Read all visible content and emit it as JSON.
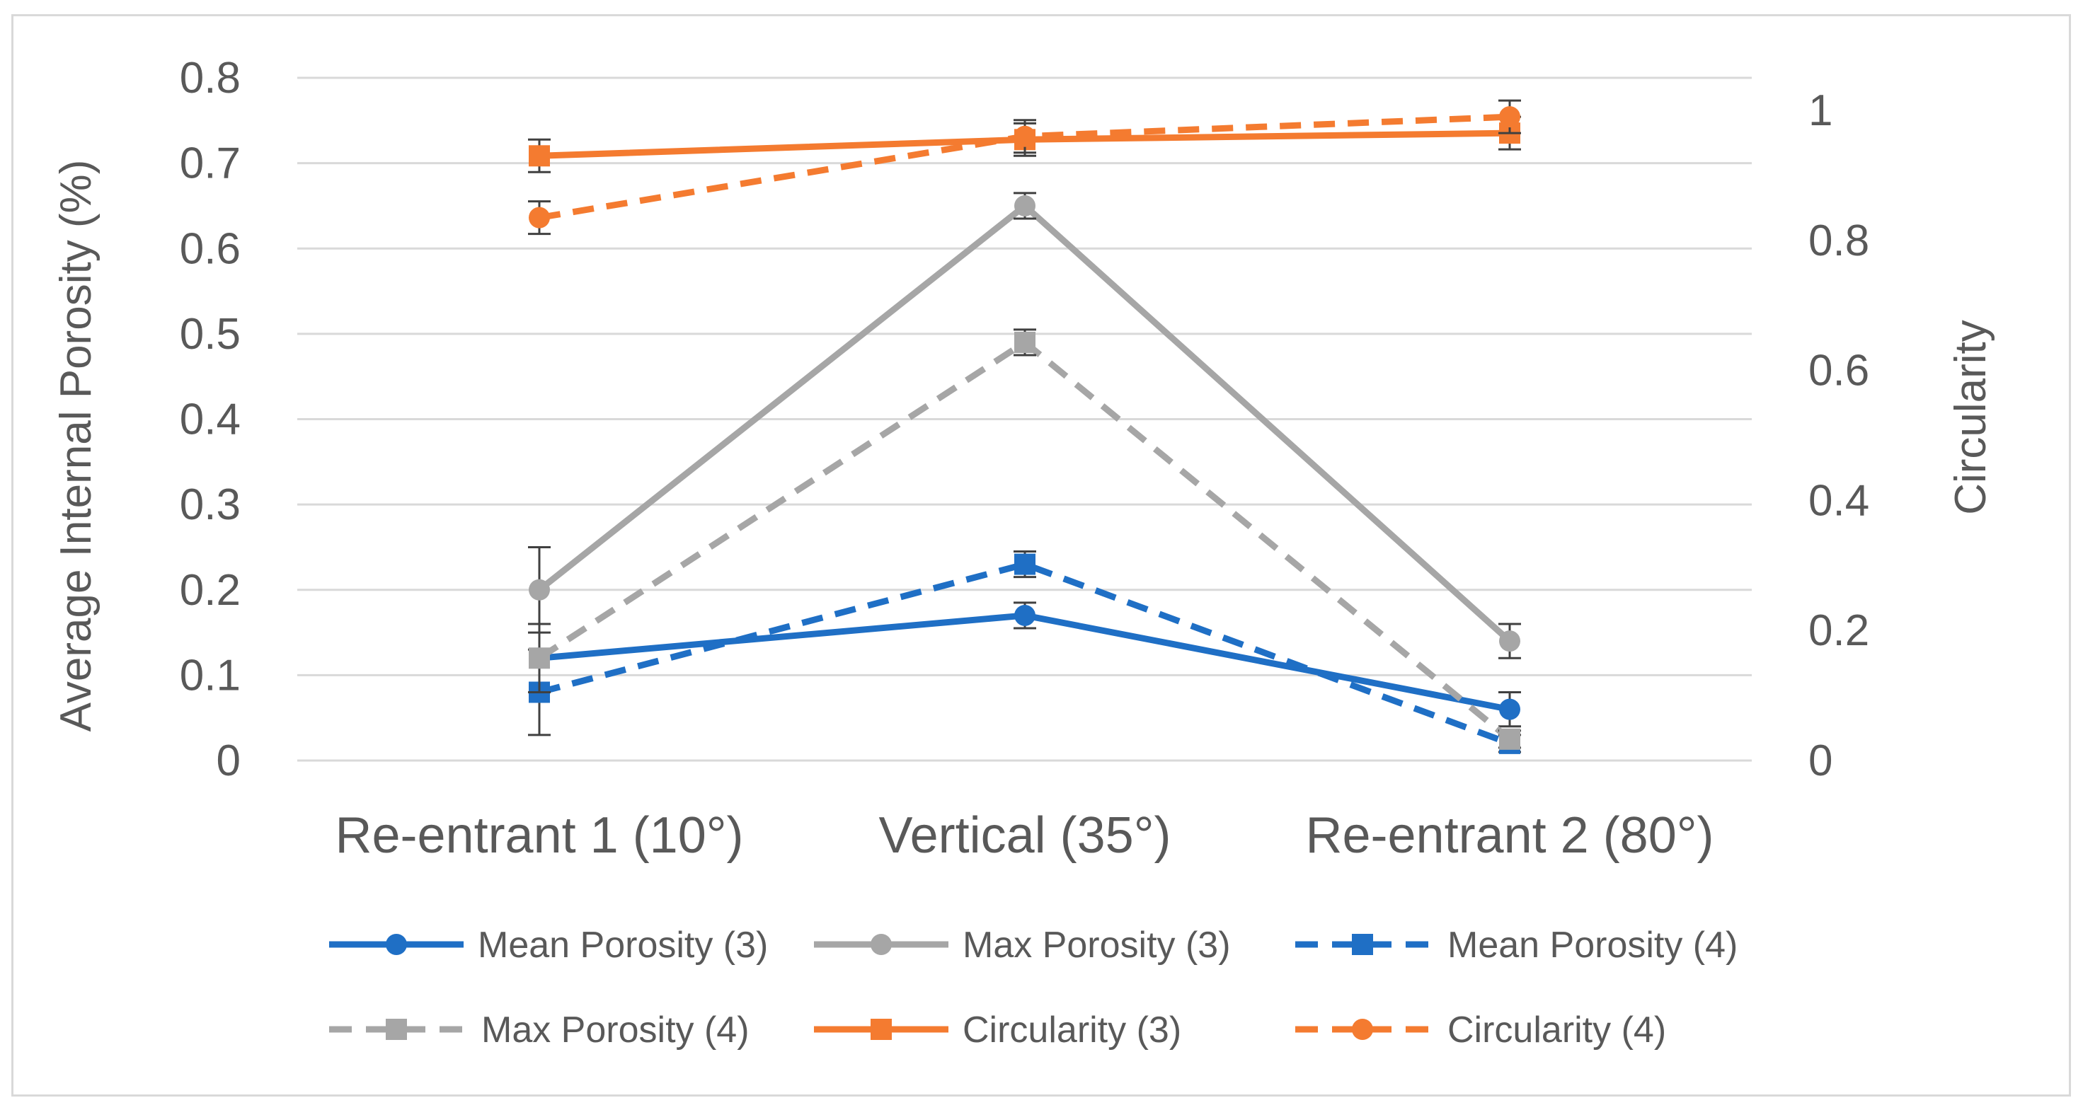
{
  "chart_data": {
    "type": "line",
    "title": "",
    "categories": [
      "Re-entrant 1 (10°)",
      "Vertical (35°)",
      "Re-entrant 2 (80°)"
    ],
    "ylabel": "Average Internal Porosity (%)",
    "y2label": "Circularity",
    "ylim": [
      0,
      0.8
    ],
    "yticks": [
      0,
      0.1,
      0.2,
      0.3,
      0.4,
      0.5,
      0.6,
      0.7,
      0.8
    ],
    "ytick_labels": [
      "0",
      "0.1",
      "0.2",
      "0.3",
      "0.4",
      "0.5",
      "0.6",
      "0.7",
      "0.8"
    ],
    "y2lim": [
      0,
      1.05
    ],
    "y2ticks": [
      0,
      0.2,
      0.4,
      0.6,
      0.8,
      1
    ],
    "y2tick_labels": [
      "0",
      "0.2",
      "0.4",
      "0.6",
      "0.8",
      "1"
    ],
    "grid": true,
    "legend_position": "bottom",
    "series": [
      {
        "name": "Mean Porosity (3)",
        "axis": "left",
        "color": "#1f6fc5",
        "dash": "solid",
        "marker": "circle",
        "values": [
          0.12,
          0.17,
          0.06
        ],
        "errors": [
          0.04,
          0.015,
          0.02
        ]
      },
      {
        "name": "Max Porosity (3)",
        "axis": "left",
        "color": "#a6a6a6",
        "dash": "solid",
        "marker": "circle",
        "values": [
          0.2,
          0.65,
          0.14
        ],
        "errors": [
          0.05,
          0.015,
          0.02
        ]
      },
      {
        "name": "Mean Porosity (4)",
        "axis": "left",
        "color": "#1f6fc5",
        "dash": "dashed",
        "marker": "square",
        "values": [
          0.08,
          0.23,
          0.02
        ],
        "errors": [
          0.05,
          0.015,
          0.01
        ]
      },
      {
        "name": "Max Porosity (4)",
        "axis": "left",
        "color": "#a6a6a6",
        "dash": "dashed",
        "marker": "square",
        "values": [
          0.12,
          0.49,
          0.025
        ],
        "errors": [
          0.04,
          0.015,
          0.01
        ]
      },
      {
        "name": "Circularity (3)",
        "axis": "right",
        "color": "#f47b30",
        "dash": "solid",
        "marker": "square",
        "values": [
          0.93,
          0.955,
          0.965
        ],
        "errors": [
          0.025,
          0.025,
          0.025
        ]
      },
      {
        "name": "Circularity (4)",
        "axis": "right",
        "color": "#f47b30",
        "dash": "dashed",
        "marker": "circle",
        "values": [
          0.835,
          0.96,
          0.99
        ],
        "errors": [
          0.025,
          0.025,
          0.025
        ]
      }
    ]
  }
}
